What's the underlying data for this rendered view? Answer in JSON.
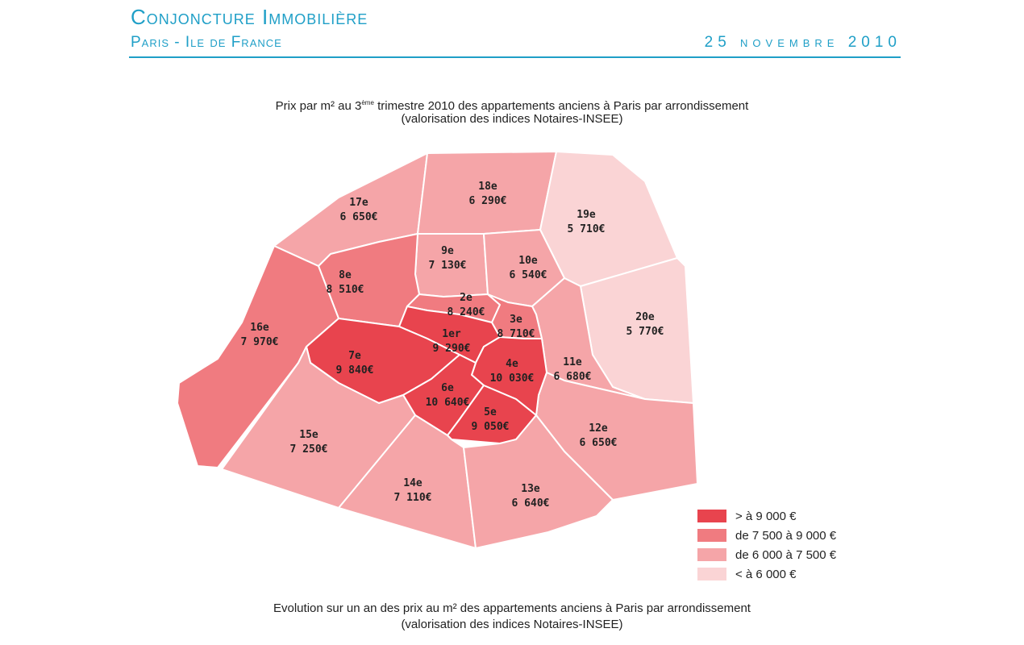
{
  "header": {
    "title": "Conjoncture Immobilière",
    "subtitle": "Paris - Ile de France",
    "date": "25 novembre 2010"
  },
  "map": {
    "title_parts": [
      "Prix par m² au 3",
      "ème",
      " trimestre 2010 des appartements anciens à Paris par arrondissement"
    ],
    "subtitle": "(valorisation des indices Notaires-INSEE)",
    "districts": [
      {
        "label": "17e",
        "price": "6 650€"
      },
      {
        "label": "18e",
        "price": "6 290€"
      },
      {
        "label": "19e",
        "price": "5 710€"
      },
      {
        "label": "9e",
        "price": "7 130€"
      },
      {
        "label": "10e",
        "price": "6 540€"
      },
      {
        "label": "8e",
        "price": "8 510€"
      },
      {
        "label": "16e",
        "price": "7 970€"
      },
      {
        "label": "20e",
        "price": "5 770€"
      },
      {
        "label": "11e",
        "price": "6 680€"
      },
      {
        "label": "12e",
        "price": "6 650€"
      },
      {
        "label": "2e",
        "price": "8 240€"
      },
      {
        "label": "3e",
        "price": "8 710€"
      },
      {
        "label": "1er",
        "price": "9 290€"
      },
      {
        "label": "4e",
        "price": "10 030€"
      },
      {
        "label": "7e",
        "price": "9 840€"
      },
      {
        "label": "6e",
        "price": "10 640€"
      },
      {
        "label": "5e",
        "price": "9 050€"
      },
      {
        "label": "15e",
        "price": "7 250€"
      },
      {
        "label": "14e",
        "price": "7 110€"
      },
      {
        "label": "13e",
        "price": "6 640€"
      }
    ],
    "legend": [
      {
        "label": "> à 9 000 €",
        "color": "#e8444e"
      },
      {
        "label": "de 7 500 à 9 000 €",
        "color": "#f07b80"
      },
      {
        "label": "de 6 000 à 7 500 €",
        "color": "#f5a5a8"
      },
      {
        "label": "< à 6 000 €",
        "color": "#fad4d5"
      }
    ]
  },
  "footer": {
    "title": "Evolution sur un an des prix au m² des appartements anciens à Paris par arrondissement",
    "subtitle": "(valorisation des indices Notaires-INSEE)"
  }
}
